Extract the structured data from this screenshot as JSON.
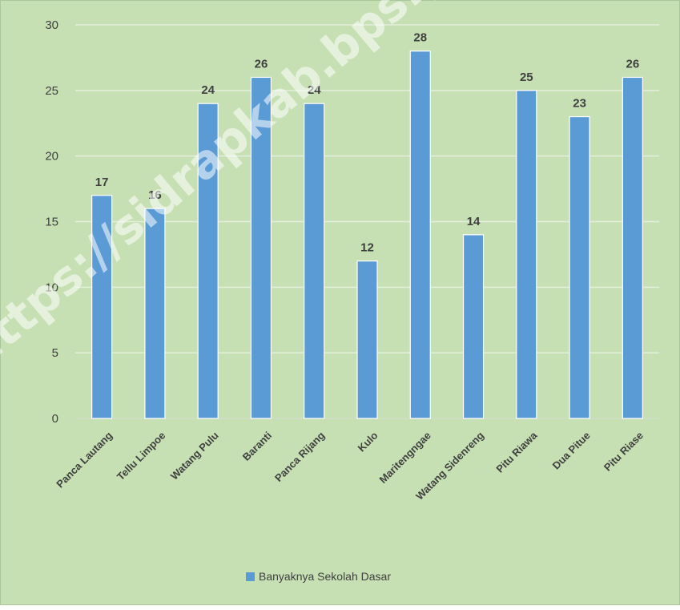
{
  "chart_data": {
    "type": "bar",
    "categories": [
      "Panca Lautang",
      "Tellu Limpoe",
      "Watang Pulu",
      "Baranti",
      "Panca Rijang",
      "Kulo",
      "Maritengngae",
      "Watang Sidenreng",
      "Pitu Riawa",
      "Dua Pitue",
      "Pitu Riase"
    ],
    "series": [
      {
        "name": "Banyaknya Sekolah Dasar",
        "values": [
          17,
          16,
          24,
          26,
          24,
          12,
          28,
          14,
          25,
          23,
          26
        ]
      }
    ],
    "ylim": [
      0,
      30
    ],
    "yticks": [
      0,
      5,
      10,
      15,
      20,
      25,
      30
    ],
    "grid": true,
    "legend_position": "bottom",
    "data_labels": true
  },
  "colors": {
    "background": "#c6e0b4",
    "bar": "#5b9bd5",
    "gridline": "#e3eedb",
    "text": "#404040"
  },
  "watermark": "https://sidrapkab.bps.go.id"
}
